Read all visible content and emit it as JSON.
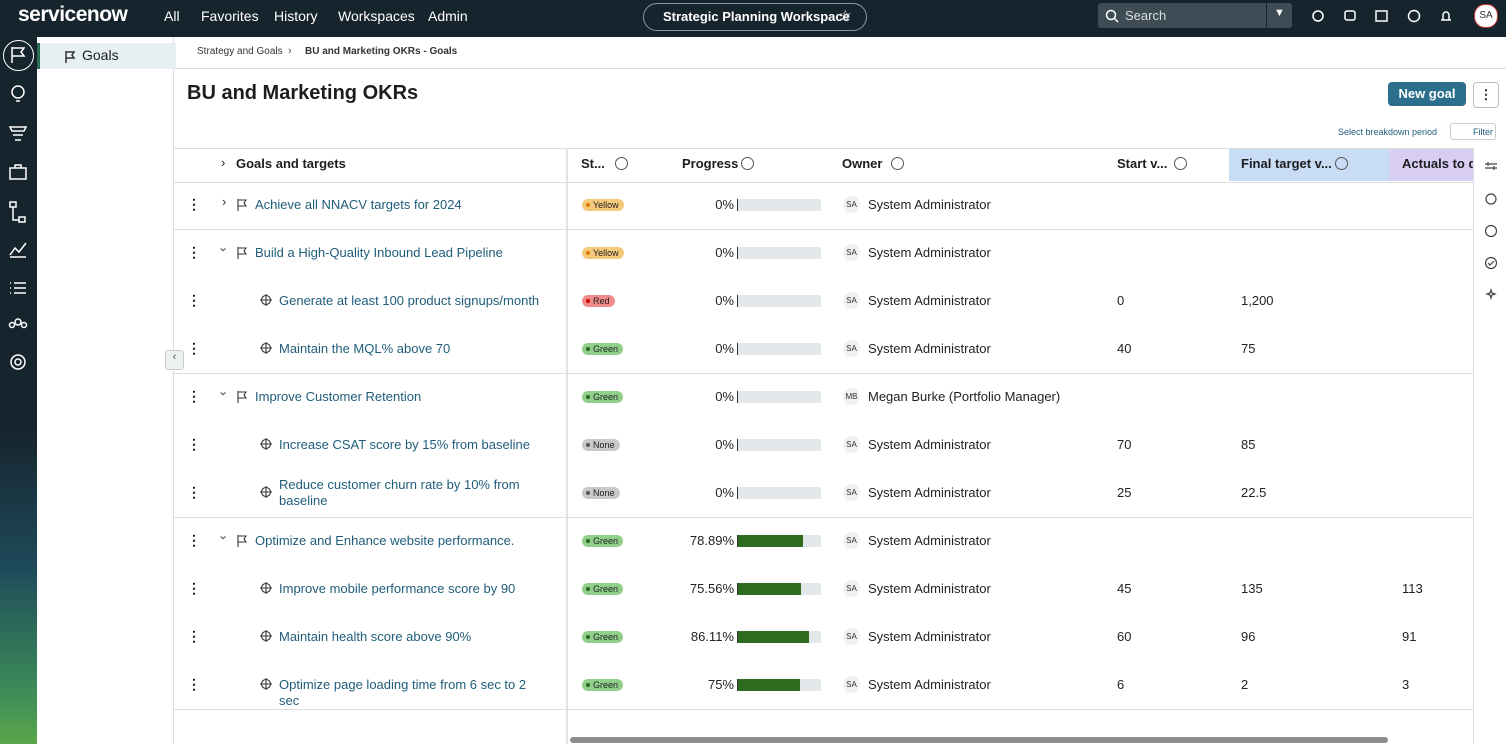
{
  "nav": {
    "logo": "servicenow",
    "items": [
      "All",
      "Favorites",
      "History",
      "Workspaces",
      "Admin"
    ],
    "workspace": "Strategic Planning Workspace",
    "search": "Search",
    "avatar": "SA"
  },
  "sidebar": {
    "item": "Goals"
  },
  "breadcrumb": [
    "Strategy and Goals",
    "BU and Marketing OKRs - Goals"
  ],
  "header": {
    "title": "BU and Marketing OKRs",
    "new_button": "New goal",
    "breakdown": "Select breakdown period",
    "filter": "Filter"
  },
  "table": {
    "columns": [
      "Goals and targets",
      "St...",
      "Progress",
      "Owner",
      "Start v...",
      "Final target v...",
      "Actuals to da"
    ],
    "rows": [
      {
        "level": 0,
        "expanded": false,
        "name": "Achieve all NNACV targets for 2024",
        "status": "Yellow",
        "progress": {
          "value": 0,
          "label": "0%"
        },
        "initials": "SA",
        "owner": "System Administrator"
      },
      {
        "level": 0,
        "expanded": true,
        "name": "Build a High-Quality Inbound Lead Pipeline",
        "status": "Yellow",
        "progress": {
          "value": 0,
          "label": "0%"
        },
        "initials": "SA",
        "owner": "System Administrator"
      },
      {
        "level": 1,
        "name": "Generate at least 100 product signups/month",
        "status": "Red",
        "progress": {
          "value": 0,
          "label": "0%"
        },
        "initials": "SA",
        "owner": "System Administrator",
        "start": "0",
        "target": "1,200"
      },
      {
        "level": 1,
        "name": "Maintain the MQL% above 70",
        "status": "Green",
        "progress": {
          "value": 0,
          "label": "0%"
        },
        "initials": "SA",
        "owner": "System Administrator",
        "start": "40",
        "target": "75"
      },
      {
        "level": 0,
        "expanded": true,
        "name": "Improve Customer Retention",
        "status": "Green",
        "progress": {
          "value": 0,
          "label": "0%"
        },
        "initials": "MB",
        "owner": "Megan Burke (Portfolio Manager)"
      },
      {
        "level": 1,
        "name": "Increase CSAT score by 15% from baseline",
        "status": "None",
        "progress": {
          "value": 0,
          "label": "0%"
        },
        "initials": "SA",
        "owner": "System Administrator",
        "start": "70",
        "target": "85"
      },
      {
        "level": 1,
        "name": "Reduce customer churn rate by 10% from baseline",
        "status": "None",
        "progress": {
          "value": 0,
          "label": "0%"
        },
        "initials": "SA",
        "owner": "System Administrator",
        "start": "25",
        "target": "22.5"
      },
      {
        "level": 0,
        "expanded": true,
        "name": "Optimize and Enhance website performance.",
        "status": "Green",
        "progress": {
          "value": 78.89,
          "label": "78.89%"
        },
        "initials": "SA",
        "owner": "System Administrator"
      },
      {
        "level": 1,
        "name": "Improve mobile performance score by 90",
        "status": "Green",
        "progress": {
          "value": 75.56,
          "label": "75.56%"
        },
        "initials": "SA",
        "owner": "System Administrator",
        "start": "45",
        "target": "135",
        "actual": "113"
      },
      {
        "level": 1,
        "name": "Maintain health score above 90%",
        "status": "Green",
        "progress": {
          "value": 86.11,
          "label": "86.11%"
        },
        "initials": "SA",
        "owner": "System Administrator",
        "start": "60",
        "target": "96",
        "actual": "91"
      },
      {
        "level": 1,
        "name": "Optimize page loading time from 6 sec to 2 sec",
        "status": "Green",
        "progress": {
          "value": 75,
          "label": "75%"
        },
        "initials": "SA",
        "owner": "System Administrator",
        "start": "6",
        "target": "2",
        "actual": "3"
      }
    ]
  }
}
